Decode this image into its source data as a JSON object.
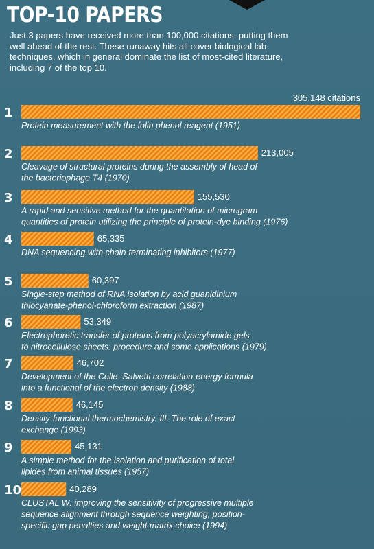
{
  "header": {
    "title": "TOP-10 PAPERS",
    "intro": "Just 3 papers have received more than 100,000 citations, putting them well ahead of the rest. These runaway hits all cover biological lab techniques, which in general dominate the list of most-cited literature, including 7 of the top 10."
  },
  "colors": {
    "background": "#3f7183",
    "bar_fill": "#f08a1c",
    "bar_stripe": "#ffb347",
    "text": "#ffffff"
  },
  "chart_data": {
    "type": "bar",
    "orientation": "horizontal",
    "unit_label": "citations",
    "xlim": [
      0,
      305148
    ],
    "grid": false,
    "items": [
      {
        "rank": "1",
        "value": 305148,
        "value_label": "305,148 citations",
        "lines": [
          "Protein measurement with the folin phenol reagent (1951)"
        ]
      },
      {
        "rank": "2",
        "value": 213005,
        "value_label": "213,005",
        "lines": [
          "Cleavage of structural proteins during the assembly of head of",
          "the bacteriophage T4 (1970)"
        ]
      },
      {
        "rank": "3",
        "value": 155530,
        "value_label": "155,530",
        "lines": [
          "A rapid and sensitive method for the quantitation of microgram",
          "quantities of protein utilizing the principle of protein-dye binding (1976)"
        ]
      },
      {
        "rank": "4",
        "value": 65335,
        "value_label": "65,335",
        "lines": [
          "DNA sequencing with chain-terminating inhibitors (1977)"
        ]
      },
      {
        "rank": "5",
        "value": 60397,
        "value_label": "60,397",
        "lines": [
          "Single-step method of RNA isolation by acid guanidinium",
          "thiocyanate-phenol-chloroform extraction (1987)"
        ]
      },
      {
        "rank": "6",
        "value": 53349,
        "value_label": "53,349",
        "lines": [
          "Electrophoretic transfer of proteins from polyacrylamide gels",
          "to nitrocellulose sheets: procedure and some applications (1979)"
        ]
      },
      {
        "rank": "7",
        "value": 46702,
        "value_label": "46,702",
        "lines": [
          "Development of the Colle–Salvetti correlation-energy formula",
          "into a functional of the electron density (1988)"
        ]
      },
      {
        "rank": "8",
        "value": 46145,
        "value_label": "46,145",
        "lines": [
          "Density-functional thermochemistry. III. The role of exact",
          "exchange (1993)"
        ]
      },
      {
        "rank": "9",
        "value": 45131,
        "value_label": "45,131",
        "lines": [
          "A simple method for the isolation and purification of total",
          "lipides from animal tissues (1957)"
        ]
      },
      {
        "rank": "10",
        "value": 40289,
        "value_label": "40,289",
        "lines": [
          "CLUSTAL W: improving the sensitivity of progressive multiple",
          "sequence alignment through sequence weighting, position-",
          "specific gap penalties and weight matrix choice (1994)"
        ]
      }
    ]
  }
}
